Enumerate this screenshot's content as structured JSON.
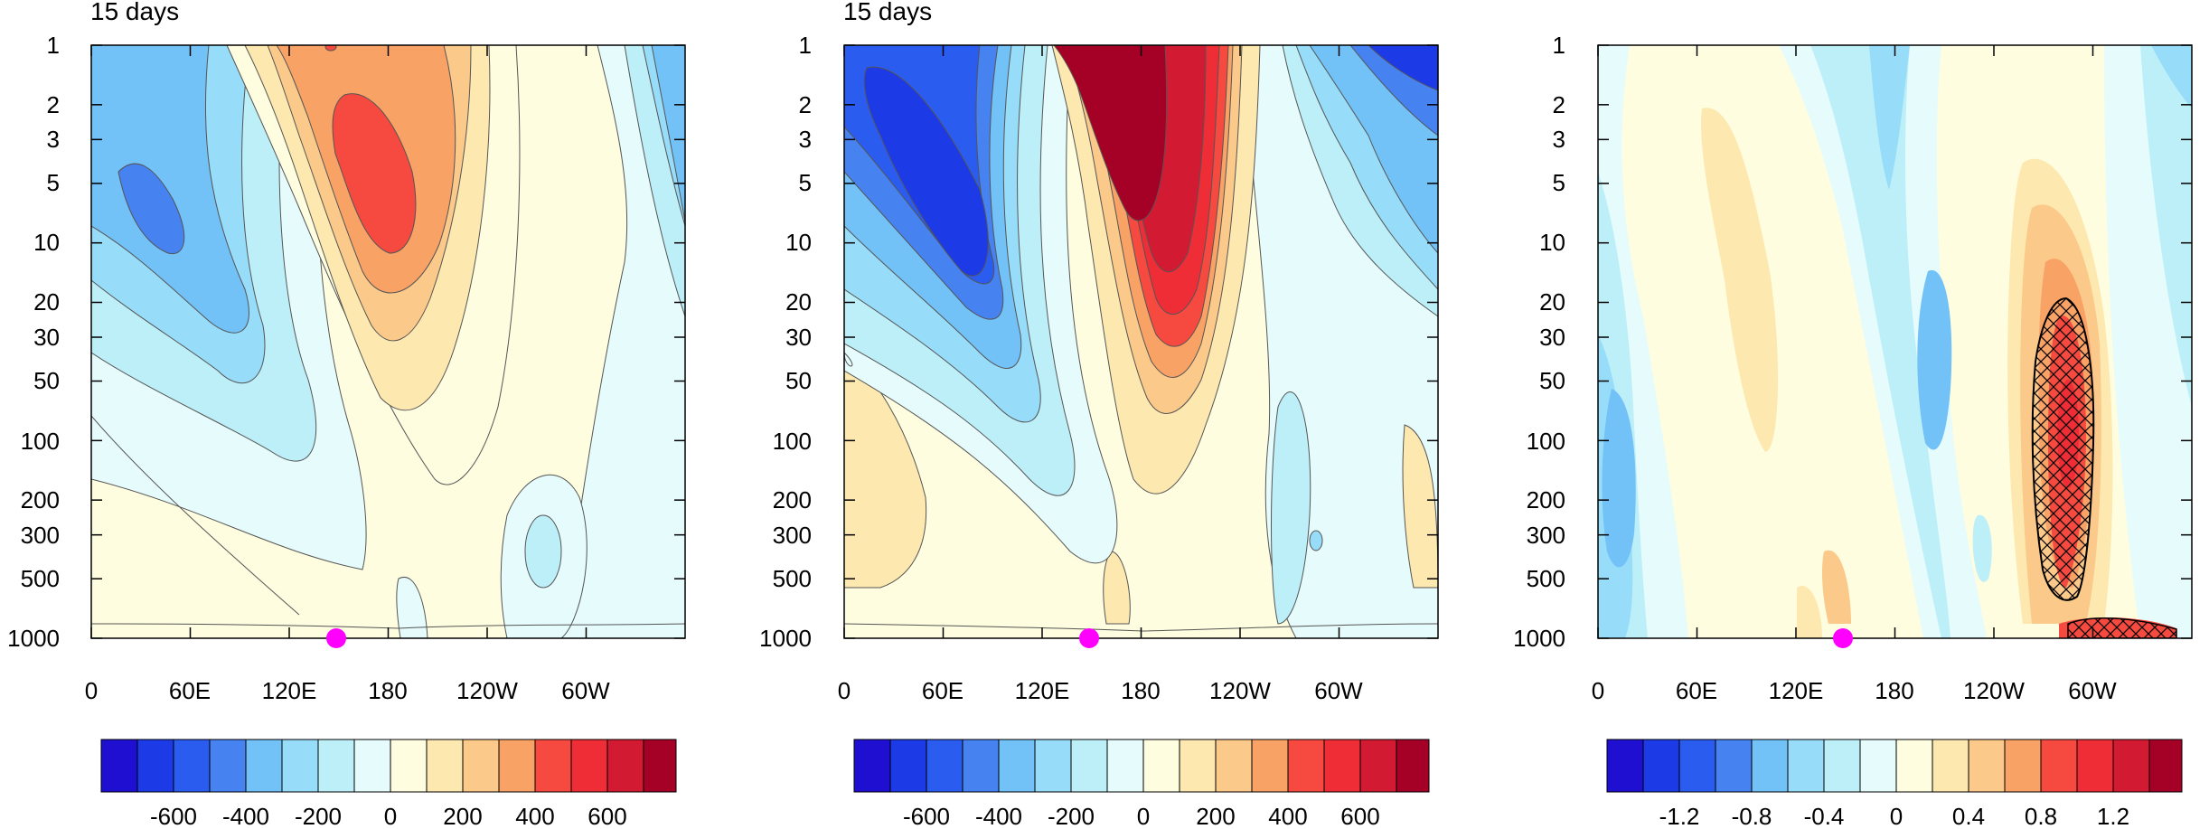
{
  "chart_data": [
    {
      "type": "heatmap",
      "title": "15 days",
      "xlabel": "",
      "ylabel": "",
      "x_ticks": [
        "0",
        "60E",
        "120E",
        "180",
        "120W",
        "60W"
      ],
      "x_tick_lon": [
        0,
        60,
        120,
        180,
        240,
        300
      ],
      "y_ticks": [
        "1",
        "2",
        "3",
        "5",
        "10",
        "20",
        "30",
        "50",
        "100",
        "200",
        "300",
        "500",
        "1000"
      ],
      "y_tick_values": [
        1,
        2,
        3,
        5,
        10,
        20,
        30,
        50,
        100,
        200,
        300,
        500,
        1000
      ],
      "xlim": [
        0,
        360
      ],
      "ylim": [
        1000,
        1
      ],
      "y_scale": "log",
      "colorbar_labels": [
        "-600",
        "-400",
        "-200",
        "0",
        "200",
        "400",
        "600"
      ],
      "marker_lon": 148
    },
    {
      "type": "heatmap",
      "title": "15 days",
      "xlabel": "",
      "ylabel": "",
      "x_ticks": [
        "0",
        "60E",
        "120E",
        "180",
        "120W",
        "60W"
      ],
      "x_tick_lon": [
        0,
        60,
        120,
        180,
        240,
        300
      ],
      "y_ticks": [
        "1",
        "2",
        "3",
        "5",
        "10",
        "20",
        "30",
        "50",
        "100",
        "200",
        "300",
        "500",
        "1000"
      ],
      "y_tick_values": [
        1,
        2,
        3,
        5,
        10,
        20,
        30,
        50,
        100,
        200,
        300,
        500,
        1000
      ],
      "xlim": [
        0,
        360
      ],
      "ylim": [
        1000,
        1
      ],
      "y_scale": "log",
      "colorbar_labels": [
        "-600",
        "-400",
        "-200",
        "0",
        "200",
        "400",
        "600"
      ],
      "marker_lon": 148
    },
    {
      "type": "heatmap",
      "title": "",
      "xlabel": "",
      "ylabel": "",
      "x_ticks": [
        "0",
        "60E",
        "120E",
        "180",
        "120W",
        "60W"
      ],
      "x_tick_lon": [
        0,
        60,
        120,
        180,
        240,
        300
      ],
      "y_ticks": [
        "1",
        "2",
        "3",
        "5",
        "10",
        "20",
        "30",
        "50",
        "100",
        "200",
        "300",
        "500",
        "1000"
      ],
      "y_tick_values": [
        1,
        2,
        3,
        5,
        10,
        20,
        30,
        50,
        100,
        200,
        300,
        500,
        1000
      ],
      "xlim": [
        0,
        360
      ],
      "ylim": [
        1000,
        1
      ],
      "y_scale": "log",
      "colorbar_labels": [
        "-1.2",
        "-0.8",
        "-0.4",
        "0",
        "0.4",
        "0.8",
        "1.2"
      ],
      "marker_lon": 148,
      "hatched_region": "significant"
    }
  ],
  "colors": {
    "palette": [
      "#1f0fd0",
      "#1c3ae6",
      "#2b5cf0",
      "#4682f0",
      "#72c1f7",
      "#97dcf8",
      "#bdeff9",
      "#e6fbfc",
      "#fefde0",
      "#fde8b0",
      "#fbc989",
      "#f8a266",
      "#f64a40",
      "#ee2d36",
      "#d21a32",
      "#a50026"
    ],
    "marker": "#ff00ff",
    "contour": "#555555"
  }
}
